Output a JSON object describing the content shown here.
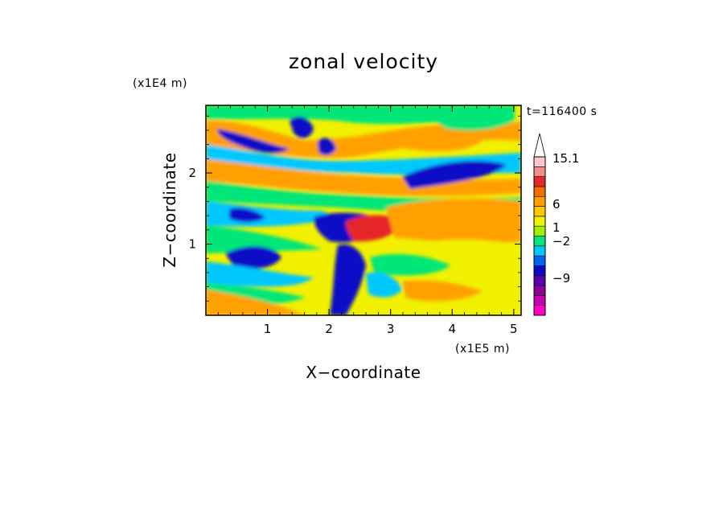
{
  "chart_data": {
    "type": "heatmap",
    "title": "zonal velocity",
    "xlabel": "X−coordinate",
    "ylabel": "Z−coordinate",
    "x_scale_label": "(x1E5 m)",
    "y_scale_label": "(x1E4 m)",
    "time_label": "t=116400 s",
    "xlim": [
      0,
      5.12
    ],
    "ylim": [
      0,
      2.95
    ],
    "x_ticks": [
      {
        "value": 1,
        "label": "1"
      },
      {
        "value": 2,
        "label": "2"
      },
      {
        "value": 3,
        "label": "3"
      },
      {
        "value": 4,
        "label": "4"
      },
      {
        "value": 5,
        "label": "5"
      }
    ],
    "y_ticks": [
      {
        "value": 1,
        "label": "1"
      },
      {
        "value": 2,
        "label": "2"
      }
    ],
    "colorbar": {
      "levels": [
        {
          "color": "#ff00c8",
          "level": -15.3
        },
        {
          "color": "#c800b4",
          "level": -12.3
        },
        {
          "color": "#8c0096",
          "level": -9
        },
        {
          "color": "#5a00aa",
          "level": -7
        },
        {
          "color": "#0a0ac8",
          "level": -5
        },
        {
          "color": "#0064f0",
          "level": -3
        },
        {
          "color": "#00c8ff",
          "level": -2
        },
        {
          "color": "#00e678",
          "level": -1
        },
        {
          "color": "#a0f000",
          "level": 0
        },
        {
          "color": "#f0f000",
          "level": 1
        },
        {
          "color": "#ffc800",
          "level": 2
        },
        {
          "color": "#ffa000",
          "level": 3
        },
        {
          "color": "#f56e00",
          "level": 4.5
        },
        {
          "color": "#e62828",
          "level": 6
        },
        {
          "color": "#f58c8c",
          "level": 9
        },
        {
          "color": "#ffc8c8",
          "level": 12
        },
        {
          "color": "#ffffff",
          "level": 15.1
        }
      ],
      "tick_labels": [
        "15.1",
        "6",
        "1",
        "−2",
        "−9"
      ]
    }
  }
}
